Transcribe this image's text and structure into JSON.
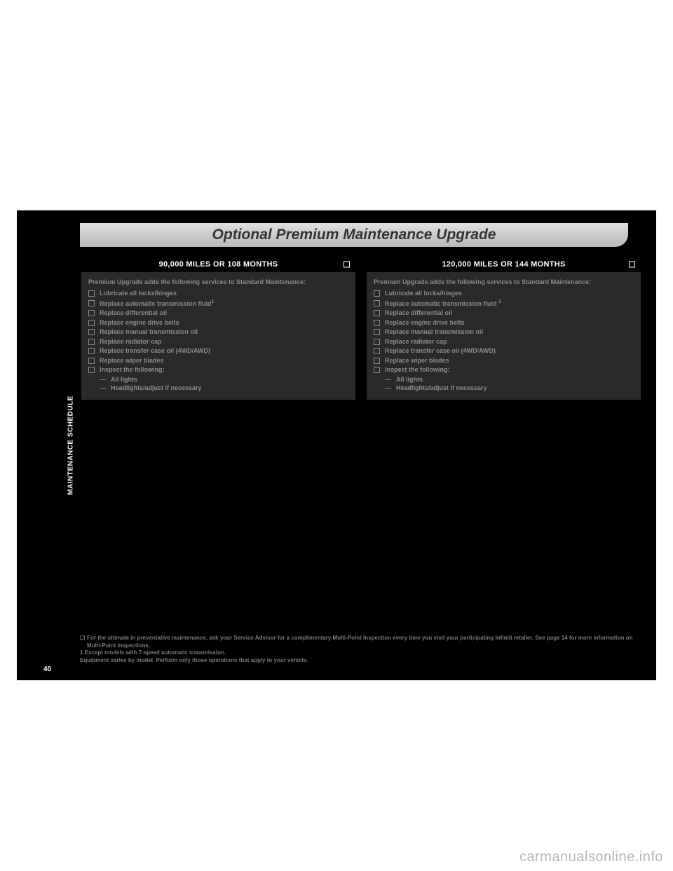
{
  "sideTab": "MAINTENANCE SCHEDULE",
  "pageNumber": "40",
  "title": "Optional Premium Maintenance Upgrade",
  "cards": [
    {
      "header": "90,000 MILES OR 108 MONTHS",
      "intro": "Premium Upgrade adds the following services to Standard Maintenance:",
      "items": [
        "Lubricate all locks/hinges",
        "Replace automatic transmission fluid",
        "Replace differential oil",
        "Replace engine drive belts",
        "Replace manual transmission oil",
        "Replace radiator cap",
        "Replace transfer case oil (4WD/AWD)",
        "Replace wiper blades",
        "Inspect the following:"
      ],
      "item2_sup": "1",
      "subitems": [
        "All lights",
        "Headlights/adjust if necessary"
      ]
    },
    {
      "header": "120,000 MILES OR 144 MONTHS",
      "intro": "Premium Upgrade adds the following services to Standard Maintenance:",
      "items": [
        "Lubricate all locks/hinges",
        "Replace automatic transmission fluid ",
        "Replace differential oil",
        "Replace engine drive belts",
        "Replace manual transmission oil",
        "Replace radiator cap",
        "Replace transfer case oil (4WD/AWD)",
        "Replace wiper blades",
        "Inspect the following:"
      ],
      "item2_sup": "1",
      "subitems": [
        "All lights",
        "Headlights/adjust if necessary"
      ]
    }
  ],
  "footnotes": {
    "bulleted": "For the ultimate in preventative maintenance, ask your Service Advisor for a complimentary Multi-Point Inspection every time you visit your participating Infiniti retailer. See page 14 for more information on Multi-Point Inspections.",
    "line2": "1 Except models with 7-speed automatic transmission.",
    "line3": "Equipment varies by model. Perform only those operations that apply to your vehicle."
  },
  "footnoteBullet": "❏",
  "watermark": "carmanualsonline.info",
  "colors": {
    "black": "#000000",
    "bodyGray": "#2a2a2a",
    "textGray": "#8c8c8c",
    "footGray": "#7a7a7a",
    "pillTop": "#e0e0e0",
    "pillBottom": "#b8b8b8",
    "watermark": "#b8b8b8"
  }
}
